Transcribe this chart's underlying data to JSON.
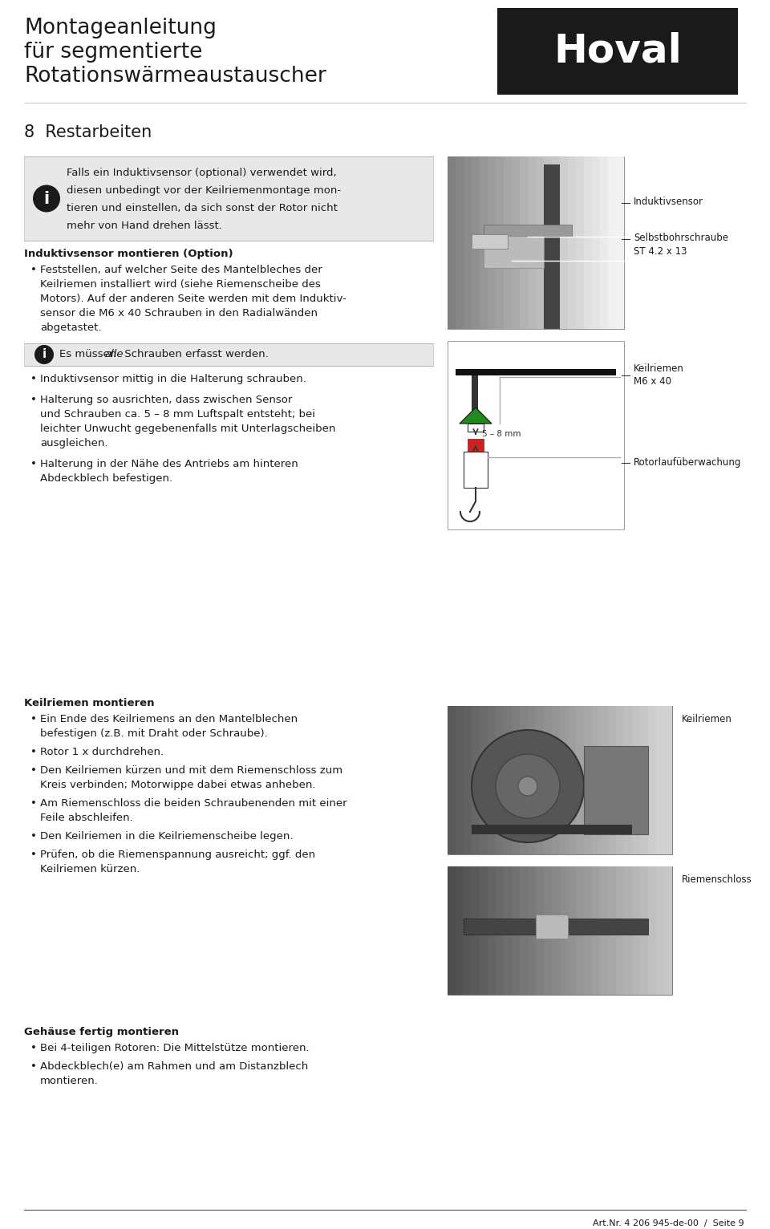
{
  "page_width": 9.6,
  "page_height": 15.32,
  "bg_color": "#ffffff",
  "header": {
    "title_line1": "Montageanleitung",
    "title_line2": "für segmentierte",
    "title_line3": "Rotationswärmeaustauscher",
    "logo_text": "Hoval",
    "logo_bg": "#1a1a1a",
    "logo_color": "#ffffff"
  },
  "section_heading": "8  Restarbeiten",
  "info_box1_lines": [
    "Falls ein Induktivsensor (optional) verwendet wird,",
    "diesen unbedingt vor der Keilriemenmontage mon-",
    "tieren und einstellen, da sich sonst der Rotor nicht",
    "mehr von Hand drehen lässt."
  ],
  "sub1_heading": "Induktivsensor montieren (Option)",
  "sub1_bullet1_lines": [
    "Feststellen, auf welcher Seite des Mantelbleches der",
    "Keilriemen installiert wird (siehe Riemenscheibe des",
    "Motors). Auf der anderen Seite werden mit dem Induktiv-",
    "sensor die M6 x 40 Schrauben in den Radialwänden",
    "abgetastet."
  ],
  "info_box2_text_pre": "Es müssen ",
  "info_box2_italic": "alle",
  "info_box2_text_post": " Schrauben erfasst werden.",
  "sub1_bullet2_lines": [
    "Induktivsensor mittig in die Halterung schrauben.",
    "Halterung so ausrichten, dass zwischen Sensor",
    "und Schrauben ca. 5 – 8 mm Luftspalt entsteht; bei",
    "leichter Unwucht gegebenenfalls mit Unterlagscheiben",
    "ausgleichen.",
    "Halterung in der Nähe des Antriebs am hinteren",
    "Abdeckblech befestigen."
  ],
  "sub1_bullet2_groups": [
    [
      "Induktivsensor mittig in die Halterung schrauben."
    ],
    [
      "Halterung so ausrichten, dass zwischen Sensor",
      "und Schrauben ca. 5 – 8 mm Luftspalt entsteht; bei",
      "leichter Unwucht gegebenenfalls mit Unterlagscheiben",
      "ausgleichen."
    ],
    [
      "Halterung in der Nähe des Antriebs am hinteren",
      "Abdeckblech befestigen."
    ]
  ],
  "label_induktiv": "Induktivsensor",
  "label_selbst": "Selbstbohrschraube",
  "label_selbst2": "ST 4.2 x 13",
  "label_keil": "Keilriemen",
  "label_m6": "M6 x 40",
  "label_roto": "Rotorlaufüberwachung",
  "label_dim": "5 – 8 mm",
  "sub2_heading": "Keilriemen montieren",
  "sub2_bullets": [
    [
      "Ein Ende des Keilriemens an den Mantelblechen",
      "befestigen (z.B. mit Draht oder Schraube)."
    ],
    [
      "Rotor 1 x durchdrehen."
    ],
    [
      "Den Keilriemen kürzen und mit dem Riemenschloss zum",
      "Kreis verbinden; Motorwippe dabei etwas anheben."
    ],
    [
      "Am Riemenschloss die beiden Schraubenenden mit einer",
      "Feile abschleifen."
    ],
    [
      "Den Keilriemen in die Keilriemenscheibe legen."
    ],
    [
      "Prüfen, ob die Riemenspannung ausreicht; ggf. den",
      "Keilriemen kürzen."
    ]
  ],
  "label_keilriemen": "Keilriemen",
  "label_riemenschloss": "Riemenschloss",
  "sub3_heading": "Gehäuse fertig montieren",
  "sub3_bullets": [
    [
      "Bei 4-teiligen Rotoren: Die Mittelstütze montieren."
    ],
    [
      "Abdeckblech(e) am Rahmen und am Distanzblech",
      "montieren."
    ]
  ],
  "footer_text": "Art.Nr. 4 206 945-de-00  /  Seite 9",
  "colors": {
    "text": "#1a1a1a",
    "info_bg": "#e8e8e8",
    "logo_bg": "#1a1a1a",
    "logo_fg": "#ffffff",
    "icon_bg": "#1a1a1a",
    "icon_fg": "#ffffff",
    "line": "#555555",
    "line_light": "#cccccc"
  }
}
